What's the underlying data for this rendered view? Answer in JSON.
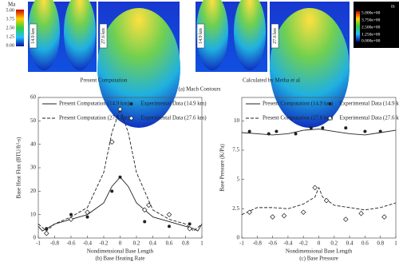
{
  "figure_a": {
    "colorbar_left": {
      "title": "Ma",
      "ticks": [
        "5.00",
        "3.75",
        "2.50",
        "1.25",
        "0.00"
      ]
    },
    "colorbar_right": {
      "title": "m",
      "ticks": [
        "5.000e+00",
        "3.750e+00",
        "2.500e+00",
        "1.250e+00",
        "0.000e+00"
      ]
    },
    "panel_labels": [
      "14.9 km",
      "27.6 km",
      "14.9 km",
      "27.6 km"
    ],
    "subcaptions": [
      "Present Computation",
      "Calculated by Metha et al"
    ],
    "caption": "(a) Mach Contours"
  },
  "chart_data": [
    {
      "type": "line",
      "caption": "(b) Base Heating Rate",
      "xlabel": "Nondimensional Base Length",
      "ylabel": "Base Heat Flux (BTU/ft²-s)",
      "xlim": [
        -1,
        1
      ],
      "xticks": [
        -1,
        -0.8,
        -0.6,
        -0.4,
        -0.2,
        0,
        0.2,
        0.4,
        0.6,
        0.8,
        1
      ],
      "ylim": [
        0,
        60
      ],
      "yticks": [
        0,
        10,
        20,
        30,
        40,
        50,
        60
      ],
      "series": [
        {
          "name": "Present Computation (14.9 km)",
          "color": "#222222",
          "linestyle": "solid",
          "x": [
            -1,
            -0.95,
            -0.9,
            -0.8,
            -0.6,
            -0.4,
            -0.2,
            -0.1,
            0,
            0.1,
            0.2,
            0.4,
            0.6,
            0.8,
            0.9,
            0.95,
            1
          ],
          "values": [
            5,
            3,
            4,
            6,
            8,
            10,
            15,
            22,
            26,
            22,
            15,
            9,
            7,
            5,
            4,
            3,
            6
          ]
        },
        {
          "name": "Experimental Data (14.9 km)",
          "color": "#222222",
          "marker": "circle",
          "x": [
            -0.9,
            -0.6,
            -0.4,
            -0.1,
            0,
            0.3,
            0.6,
            0.85
          ],
          "values": [
            4,
            10,
            9,
            20,
            26,
            7,
            5,
            6
          ]
        },
        {
          "name": "Present Computation (27.6 km)",
          "color": "#222222",
          "linestyle": "dashed",
          "x": [
            -1,
            -0.9,
            -0.8,
            -0.6,
            -0.4,
            -0.2,
            -0.1,
            0,
            0.1,
            0.2,
            0.4,
            0.6,
            0.8,
            0.9,
            1
          ],
          "values": [
            6,
            3,
            6,
            9,
            13,
            28,
            45,
            55,
            45,
            28,
            12,
            8,
            6,
            3,
            6
          ]
        },
        {
          "name": "Experimental Data (27.6 km)",
          "color": "#222222",
          "marker": "diamond",
          "x": [
            -0.9,
            -0.6,
            -0.4,
            -0.1,
            0,
            0.3,
            0.35,
            0.6,
            0.85
          ],
          "values": [
            2,
            8,
            11,
            41,
            55,
            12,
            14,
            10,
            4
          ]
        }
      ]
    },
    {
      "type": "line",
      "caption": "(c) Base Pressure",
      "xlabel": "Nondimensional Base Length",
      "ylabel": "Base Pressure (K/Pa)",
      "xlim": [
        -1,
        1
      ],
      "xticks": [
        -1,
        -0.8,
        -0.6,
        -0.4,
        -0.2,
        0,
        0.2,
        0.4,
        0.6,
        0.8,
        1
      ],
      "ylim": [
        0,
        12
      ],
      "yticks": [
        0,
        2.5,
        5,
        7.5,
        10
      ],
      "series": [
        {
          "name": "Present Computation (14.9 km)",
          "color": "#222222",
          "linestyle": "solid",
          "x": [
            -1,
            -0.8,
            -0.6,
            -0.4,
            -0.2,
            0,
            0.2,
            0.4,
            0.6,
            0.8,
            1
          ],
          "values": [
            9,
            8.9,
            8.8,
            8.9,
            9.2,
            9.3,
            9.1,
            8.9,
            8.8,
            9,
            9.2
          ]
        },
        {
          "name": "Experimental Data (14.9 km)",
          "color": "#222222",
          "marker": "circle",
          "x": [
            -0.9,
            -0.65,
            -0.55,
            -0.3,
            -0.1,
            0.05,
            0.35,
            0.6,
            0.8
          ],
          "values": [
            9.1,
            8.9,
            9.1,
            8.9,
            9.4,
            9.4,
            9.4,
            9.1,
            9.1
          ]
        },
        {
          "name": "Present Computation (27.6 km)",
          "color": "#222222",
          "linestyle": "dashed",
          "x": [
            -1,
            -0.8,
            -0.6,
            -0.4,
            -0.2,
            -0.05,
            0,
            0.05,
            0.2,
            0.4,
            0.6,
            0.8,
            1
          ],
          "values": [
            2,
            2.6,
            2.6,
            2.5,
            2.9,
            3.5,
            4.3,
            3.5,
            2.8,
            2.6,
            2.4,
            2.6,
            3
          ]
        },
        {
          "name": "Experimental Data (27.6 km)",
          "color": "#222222",
          "marker": "diamond",
          "x": [
            -0.9,
            -0.6,
            -0.45,
            -0.2,
            -0.05,
            0.1,
            0.35,
            0.55,
            0.85
          ],
          "values": [
            2.2,
            1.8,
            1.9,
            2.2,
            4.3,
            3.2,
            1.6,
            2.1,
            1.8
          ]
        }
      ]
    }
  ]
}
